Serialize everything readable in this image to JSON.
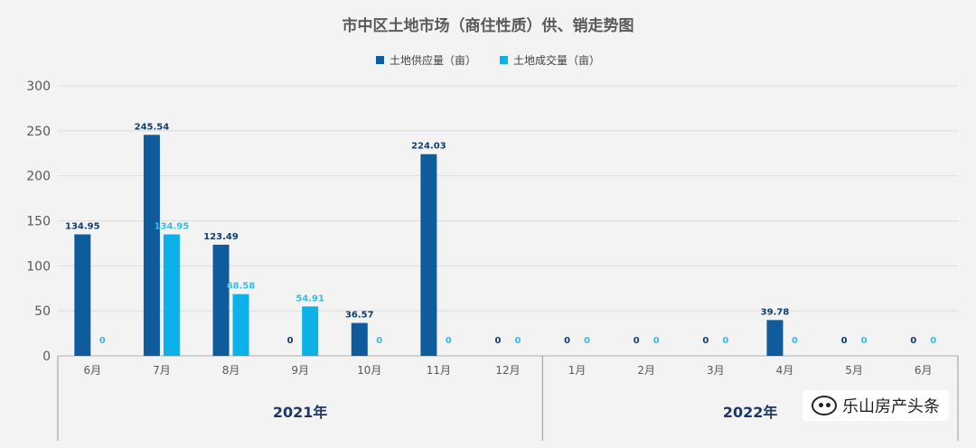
{
  "chart_data": {
    "type": "bar",
    "title": "市中区土地市场（商住性质）供、销走势图",
    "categories": [
      "6月",
      "7月",
      "8月",
      "9月",
      "10月",
      "11月",
      "12月",
      "1月",
      "2月",
      "3月",
      "4月",
      "5月",
      "6月"
    ],
    "year_groups": [
      {
        "label": "2021年",
        "start_index": 0,
        "end_index": 6
      },
      {
        "label": "2022年",
        "start_index": 7,
        "end_index": 12
      }
    ],
    "series": [
      {
        "name": "土地供应量（亩）",
        "color": "#0e5c9c",
        "values": [
          134.95,
          245.54,
          123.49,
          0,
          36.57,
          224.03,
          0,
          0,
          0,
          0,
          39.78,
          0,
          0
        ],
        "labels": [
          "134.95",
          "245.54",
          "123.49",
          "0",
          "36.57",
          "224.03",
          "0",
          "0",
          "0",
          "0",
          "39.78",
          "0",
          "0"
        ]
      },
      {
        "name": "土地成交量（亩）",
        "color": "#0cb1e8",
        "values": [
          0,
          134.95,
          68.58,
          54.91,
          0,
          0,
          0,
          0,
          0,
          0,
          0,
          0,
          0
        ],
        "labels": [
          "0",
          "134.95",
          "68.58",
          "54.91",
          "0",
          "0",
          "0",
          "0",
          "0",
          "0",
          "0",
          "0",
          "0"
        ]
      }
    ],
    "ylim": [
      0,
      300
    ],
    "yticks": [
      "0",
      "50",
      "100",
      "150",
      "200",
      "250",
      "300"
    ],
    "grid": true,
    "legend_position": "top"
  },
  "watermark": {
    "text": "乐山房产头条",
    "icon": "wechat-icon"
  }
}
